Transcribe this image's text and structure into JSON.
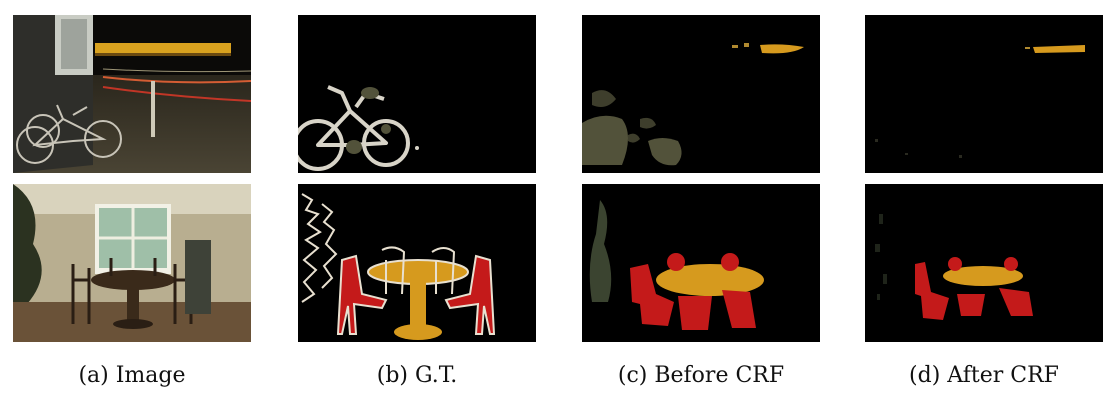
{
  "figure": {
    "captions": [
      "(a) Image",
      "(b) G.T.",
      "(c) Before CRF",
      "(d) After CRF"
    ],
    "rows": [
      "street-bicycles-night",
      "dining-room"
    ]
  },
  "colors": {
    "background": "#000000",
    "bicycle": "#52523a",
    "bicycle_outline": "#d8d4c8",
    "table": "#d69a1e",
    "chair": "#c41a1a",
    "plant": "#3b4430",
    "boundary": "#e8e0d0"
  }
}
